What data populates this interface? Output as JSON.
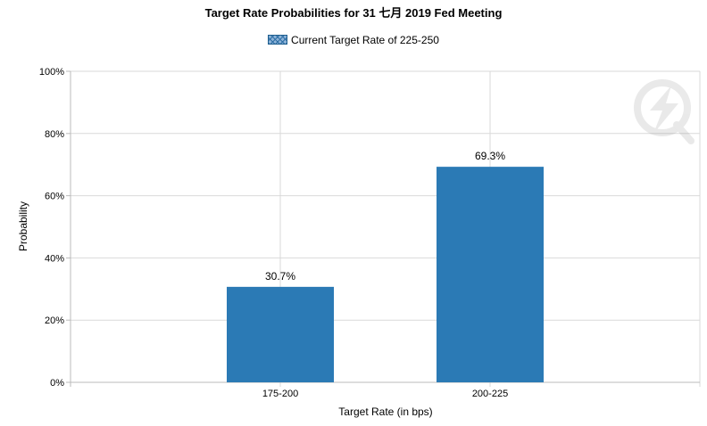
{
  "chart_data": {
    "type": "bar",
    "title": "Target Rate Probabilities for 31 七月 2019 Fed Meeting",
    "legend": "Current Target Rate of 225-250",
    "legend_position": "top-center",
    "categories": [
      "175-200",
      "200-225"
    ],
    "values": [
      30.7,
      69.3
    ],
    "value_labels": [
      "30.7%",
      "69.3%"
    ],
    "xlabel": "Target Rate (in bps)",
    "ylabel": "Probability",
    "ylim": [
      0,
      100
    ],
    "yticks": [
      "0%",
      "20%",
      "40%",
      "60%",
      "80%",
      "100%"
    ],
    "grid": true,
    "bar_color": "#2b7ab5",
    "grid_color": "#d9d9d9"
  }
}
